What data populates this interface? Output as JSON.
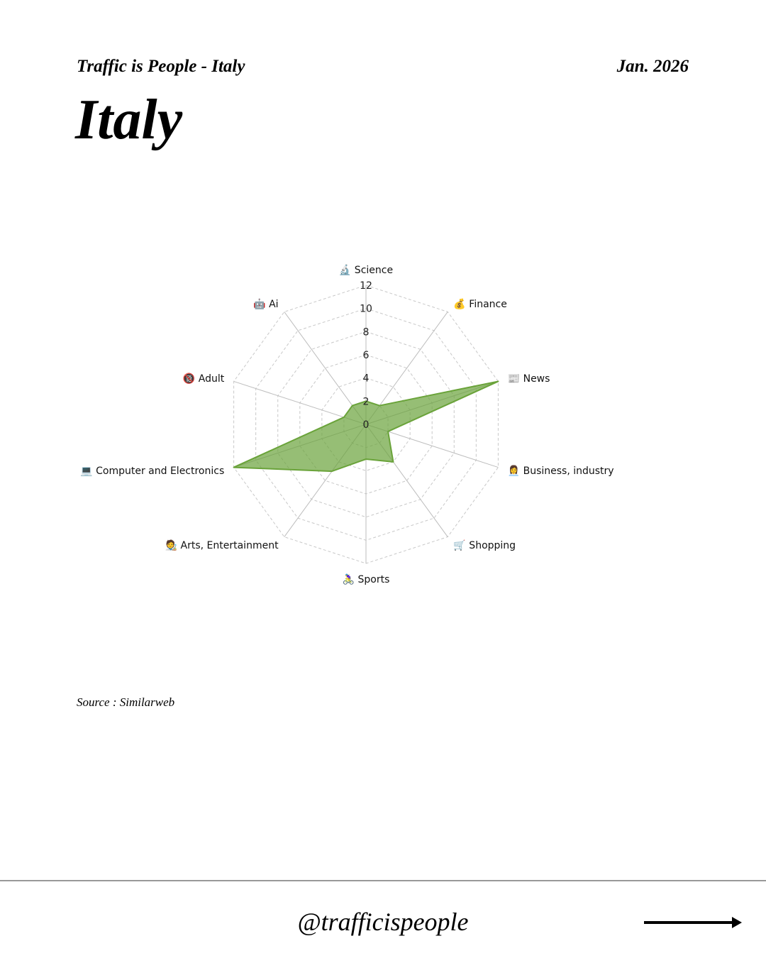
{
  "header": {
    "subtitle": "Traffic is People - Italy",
    "date": "Jan. 2026",
    "title": "Italy"
  },
  "chart_data": {
    "type": "radar",
    "categories": [
      "🔬 Science",
      "💰 Finance",
      "📰 News",
      "👩‍💼 Business, industry",
      "🛒 Shopping",
      "🚴‍♀️ Sports",
      "🧑‍🎨 Arts, Entertainment",
      "💻 Computer and Electronics",
      "🔞 Adult",
      "🤖 Ai"
    ],
    "values": [
      2,
      2,
      12,
      2,
      4,
      3,
      5,
      12,
      2,
      2
    ],
    "color": "#6aa33a",
    "ylim": [
      0,
      12
    ],
    "yticks": [
      0,
      2,
      4,
      6,
      8,
      10,
      12
    ],
    "grid": true
  },
  "source": "Source : Similarweb",
  "footer": {
    "handle": "@trafficispeople"
  }
}
